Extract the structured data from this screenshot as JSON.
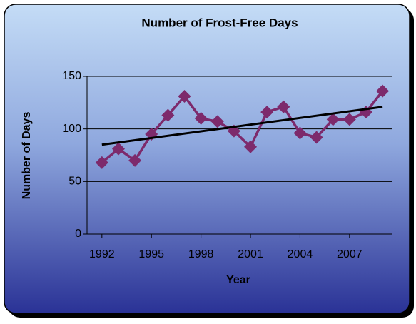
{
  "chart_data": {
    "type": "line",
    "title": "Number of Frost-Free Days",
    "x_label": "Year",
    "y_label": "Number of Days",
    "x": [
      1992,
      1993,
      1994,
      1995,
      1996,
      1997,
      1998,
      1999,
      2000,
      2001,
      2002,
      2003,
      2004,
      2005,
      2006,
      2007,
      2008,
      2009
    ],
    "series": [
      {
        "color": "#7d2a6c",
        "values": [
          68,
          81,
          70,
          95,
          113,
          131,
          110,
          107,
          98,
          83,
          116,
          121,
          96,
          92,
          109,
          109,
          116,
          136
        ]
      }
    ],
    "trend": {
      "color": "#000000",
      "x": [
        1992,
        2009
      ],
      "values": [
        85,
        121
      ]
    },
    "xlim": [
      1991.1,
      2009.6
    ],
    "xticks": [
      1992,
      1995,
      1998,
      2001,
      2004,
      2007
    ],
    "ylim": [
      0,
      150
    ],
    "yticks": [
      0,
      50,
      100,
      150
    ],
    "grid": true
  }
}
